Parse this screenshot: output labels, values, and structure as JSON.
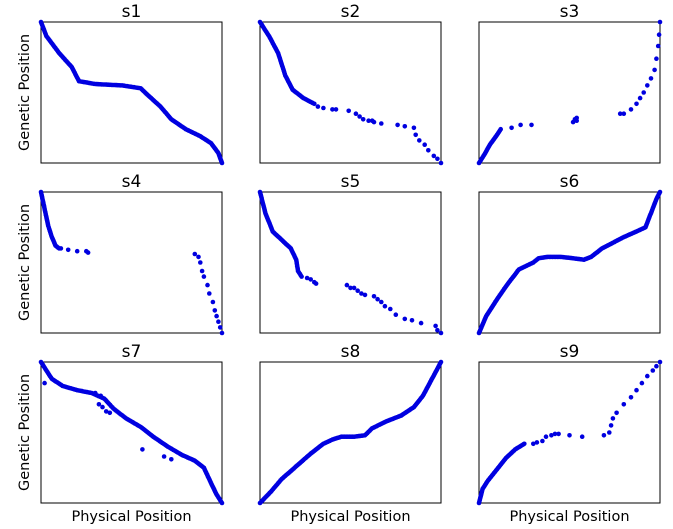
{
  "chart_data": [
    {
      "type": "scatter",
      "title": "s1",
      "xlabel": "",
      "ylabel": "Genetic Position",
      "xlim": [
        0,
        1
      ],
      "ylim": [
        0,
        1
      ],
      "color": "#0000e0",
      "anchors": [
        [
          0,
          1
        ],
        [
          0.03,
          0.9
        ],
        [
          0.1,
          0.78
        ],
        [
          0.17,
          0.68
        ],
        [
          0.21,
          0.58
        ],
        [
          0.3,
          0.56
        ],
        [
          0.45,
          0.55
        ],
        [
          0.55,
          0.53
        ],
        [
          0.6,
          0.47
        ],
        [
          0.66,
          0.4
        ],
        [
          0.72,
          0.31
        ],
        [
          0.8,
          0.24
        ],
        [
          0.88,
          0.19
        ],
        [
          0.94,
          0.14
        ],
        [
          0.98,
          0.07
        ],
        [
          1,
          0
        ]
      ],
      "points": []
    },
    {
      "type": "scatter",
      "title": "s2",
      "xlabel": "",
      "ylabel": "",
      "xlim": [
        0,
        1
      ],
      "ylim": [
        0,
        1
      ],
      "color": "#0000e0",
      "anchors": [
        [
          0,
          1
        ],
        [
          0.05,
          0.9
        ],
        [
          0.1,
          0.78
        ],
        [
          0.12,
          0.7
        ],
        [
          0.14,
          0.62
        ],
        [
          0.18,
          0.52
        ],
        [
          0.24,
          0.46
        ],
        [
          0.3,
          0.42
        ]
      ],
      "points": [
        [
          0.32,
          0.4
        ],
        [
          0.35,
          0.39
        ],
        [
          0.4,
          0.38
        ],
        [
          0.42,
          0.38
        ],
        [
          0.49,
          0.37
        ],
        [
          0.53,
          0.35
        ],
        [
          0.55,
          0.33
        ],
        [
          0.57,
          0.31
        ],
        [
          0.6,
          0.3
        ],
        [
          0.62,
          0.3
        ],
        [
          0.63,
          0.29
        ],
        [
          0.67,
          0.28
        ],
        [
          0.76,
          0.27
        ],
        [
          0.8,
          0.26
        ],
        [
          0.85,
          0.25
        ],
        [
          0.86,
          0.2
        ],
        [
          0.88,
          0.16
        ],
        [
          0.91,
          0.13
        ],
        [
          0.93,
          0.09
        ],
        [
          0.96,
          0.05
        ],
        [
          0.98,
          0.03
        ],
        [
          1,
          0
        ]
      ]
    },
    {
      "type": "scatter",
      "title": "s3",
      "xlabel": "",
      "ylabel": "",
      "xlim": [
        0,
        1
      ],
      "ylim": [
        0,
        1
      ],
      "color": "#0000e0",
      "anchors": [
        [
          0,
          0
        ],
        [
          0.03,
          0.06
        ],
        [
          0.06,
          0.13
        ],
        [
          0.1,
          0.2
        ],
        [
          0.12,
          0.24
        ]
      ],
      "points": [
        [
          0.18,
          0.25
        ],
        [
          0.23,
          0.27
        ],
        [
          0.29,
          0.27
        ],
        [
          0.52,
          0.29
        ],
        [
          0.54,
          0.3
        ],
        [
          0.53,
          0.31
        ],
        [
          0.54,
          0.32
        ],
        [
          0.78,
          0.35
        ],
        [
          0.8,
          0.35
        ],
        [
          0.84,
          0.38
        ],
        [
          0.87,
          0.42
        ],
        [
          0.89,
          0.46
        ],
        [
          0.91,
          0.5
        ],
        [
          0.93,
          0.55
        ],
        [
          0.95,
          0.6
        ],
        [
          0.97,
          0.66
        ],
        [
          0.98,
          0.74
        ],
        [
          0.99,
          0.83
        ],
        [
          0.995,
          0.91
        ],
        [
          1,
          1
        ]
      ]
    },
    {
      "type": "scatter",
      "title": "s4",
      "xlabel": "",
      "ylabel": "Genetic Position",
      "xlim": [
        0,
        1
      ],
      "ylim": [
        0,
        1
      ],
      "color": "#0000e0",
      "anchors": [
        [
          0,
          1
        ],
        [
          0.02,
          0.88
        ],
        [
          0.04,
          0.76
        ],
        [
          0.06,
          0.68
        ],
        [
          0.08,
          0.62
        ],
        [
          0.1,
          0.6
        ]
      ],
      "points": [
        [
          0.11,
          0.6
        ],
        [
          0.15,
          0.59
        ],
        [
          0.2,
          0.58
        ],
        [
          0.25,
          0.58
        ],
        [
          0.26,
          0.57
        ],
        [
          0.85,
          0.56
        ],
        [
          0.87,
          0.54
        ],
        [
          0.88,
          0.5
        ],
        [
          0.89,
          0.44
        ],
        [
          0.9,
          0.4
        ],
        [
          0.92,
          0.34
        ],
        [
          0.93,
          0.28
        ],
        [
          0.95,
          0.22
        ],
        [
          0.96,
          0.16
        ],
        [
          0.97,
          0.12
        ],
        [
          0.98,
          0.08
        ],
        [
          0.99,
          0.04
        ],
        [
          1,
          0
        ]
      ]
    },
    {
      "type": "scatter",
      "title": "s5",
      "xlabel": "",
      "ylabel": "",
      "xlim": [
        0,
        1
      ],
      "ylim": [
        0,
        1
      ],
      "color": "#0000e0",
      "anchors": [
        [
          0,
          1
        ],
        [
          0.03,
          0.85
        ],
        [
          0.07,
          0.72
        ],
        [
          0.12,
          0.66
        ],
        [
          0.17,
          0.6
        ],
        [
          0.2,
          0.52
        ],
        [
          0.21,
          0.44
        ],
        [
          0.23,
          0.4
        ]
      ],
      "points": [
        [
          0.26,
          0.39
        ],
        [
          0.28,
          0.38
        ],
        [
          0.3,
          0.36
        ],
        [
          0.31,
          0.35
        ],
        [
          0.48,
          0.34
        ],
        [
          0.5,
          0.32
        ],
        [
          0.52,
          0.32
        ],
        [
          0.54,
          0.3
        ],
        [
          0.56,
          0.28
        ],
        [
          0.58,
          0.27
        ],
        [
          0.63,
          0.26
        ],
        [
          0.65,
          0.24
        ],
        [
          0.67,
          0.22
        ],
        [
          0.69,
          0.19
        ],
        [
          0.72,
          0.17
        ],
        [
          0.75,
          0.13
        ],
        [
          0.8,
          0.1
        ],
        [
          0.84,
          0.09
        ],
        [
          0.89,
          0.07
        ],
        [
          0.97,
          0.05
        ],
        [
          0.98,
          0.02
        ],
        [
          1,
          0
        ]
      ]
    },
    {
      "type": "scatter",
      "title": "s6",
      "xlabel": "",
      "ylabel": "",
      "xlim": [
        0,
        1
      ],
      "ylim": [
        0,
        1
      ],
      "color": "#0000e0",
      "anchors": [
        [
          0,
          0
        ],
        [
          0.04,
          0.12
        ],
        [
          0.1,
          0.24
        ],
        [
          0.16,
          0.35
        ],
        [
          0.22,
          0.45
        ],
        [
          0.3,
          0.5
        ],
        [
          0.33,
          0.53
        ],
        [
          0.38,
          0.54
        ],
        [
          0.45,
          0.54
        ],
        [
          0.52,
          0.53
        ],
        [
          0.58,
          0.52
        ],
        [
          0.62,
          0.54
        ],
        [
          0.68,
          0.6
        ],
        [
          0.74,
          0.64
        ],
        [
          0.8,
          0.68
        ],
        [
          0.87,
          0.72
        ],
        [
          0.92,
          0.75
        ],
        [
          0.95,
          0.85
        ],
        [
          0.98,
          0.95
        ],
        [
          1,
          1
        ]
      ],
      "points": []
    },
    {
      "type": "scatter",
      "title": "s7",
      "xlabel": "Physical Position",
      "ylabel": "Genetic Position",
      "xlim": [
        0,
        1
      ],
      "ylim": [
        0,
        1
      ],
      "color": "#0000e0",
      "anchors": [
        [
          0,
          1
        ],
        [
          0.03,
          0.94
        ],
        [
          0.06,
          0.88
        ],
        [
          0.12,
          0.83
        ],
        [
          0.2,
          0.8
        ],
        [
          0.28,
          0.78
        ],
        [
          0.35,
          0.74
        ],
        [
          0.4,
          0.67
        ],
        [
          0.47,
          0.6
        ],
        [
          0.55,
          0.54
        ],
        [
          0.62,
          0.47
        ],
        [
          0.7,
          0.4
        ],
        [
          0.78,
          0.34
        ],
        [
          0.85,
          0.3
        ],
        [
          0.9,
          0.25
        ],
        [
          0.94,
          0.14
        ],
        [
          0.97,
          0.06
        ],
        [
          1,
          0
        ]
      ],
      "points": [
        [
          0.02,
          0.85
        ],
        [
          0.3,
          0.78
        ],
        [
          0.33,
          0.76
        ],
        [
          0.32,
          0.7
        ],
        [
          0.34,
          0.68
        ],
        [
          0.36,
          0.65
        ],
        [
          0.38,
          0.64
        ],
        [
          0.56,
          0.38
        ],
        [
          0.68,
          0.33
        ],
        [
          0.72,
          0.31
        ]
      ]
    },
    {
      "type": "scatter",
      "title": "s8",
      "xlabel": "Physical Position",
      "ylabel": "",
      "xlim": [
        0,
        1
      ],
      "ylim": [
        0,
        1
      ],
      "color": "#0000e0",
      "anchors": [
        [
          0,
          0
        ],
        [
          0.06,
          0.08
        ],
        [
          0.12,
          0.17
        ],
        [
          0.2,
          0.26
        ],
        [
          0.28,
          0.35
        ],
        [
          0.35,
          0.42
        ],
        [
          0.4,
          0.45
        ],
        [
          0.45,
          0.47
        ],
        [
          0.52,
          0.47
        ],
        [
          0.58,
          0.48
        ],
        [
          0.62,
          0.53
        ],
        [
          0.7,
          0.58
        ],
        [
          0.78,
          0.62
        ],
        [
          0.85,
          0.68
        ],
        [
          0.9,
          0.76
        ],
        [
          0.95,
          0.88
        ],
        [
          1,
          1
        ]
      ],
      "points": []
    },
    {
      "type": "scatter",
      "title": "s9",
      "xlabel": "Physical Position",
      "ylabel": "",
      "xlim": [
        0,
        1
      ],
      "ylim": [
        0,
        1
      ],
      "color": "#0000e0",
      "anchors": [
        [
          0,
          0
        ],
        [
          0.02,
          0.1
        ],
        [
          0.05,
          0.16
        ],
        [
          0.1,
          0.24
        ],
        [
          0.15,
          0.32
        ],
        [
          0.2,
          0.38
        ],
        [
          0.25,
          0.42
        ]
      ],
      "points": [
        [
          0.3,
          0.42
        ],
        [
          0.32,
          0.43
        ],
        [
          0.35,
          0.44
        ],
        [
          0.37,
          0.47
        ],
        [
          0.4,
          0.48
        ],
        [
          0.42,
          0.49
        ],
        [
          0.44,
          0.49
        ],
        [
          0.5,
          0.48
        ],
        [
          0.57,
          0.47
        ],
        [
          0.69,
          0.48
        ],
        [
          0.72,
          0.5
        ],
        [
          0.73,
          0.55
        ],
        [
          0.74,
          0.6
        ],
        [
          0.76,
          0.64
        ],
        [
          0.8,
          0.7
        ],
        [
          0.84,
          0.75
        ],
        [
          0.87,
          0.8
        ],
        [
          0.9,
          0.85
        ],
        [
          0.93,
          0.9
        ],
        [
          0.96,
          0.94
        ],
        [
          0.98,
          0.97
        ],
        [
          1,
          1
        ]
      ]
    }
  ]
}
